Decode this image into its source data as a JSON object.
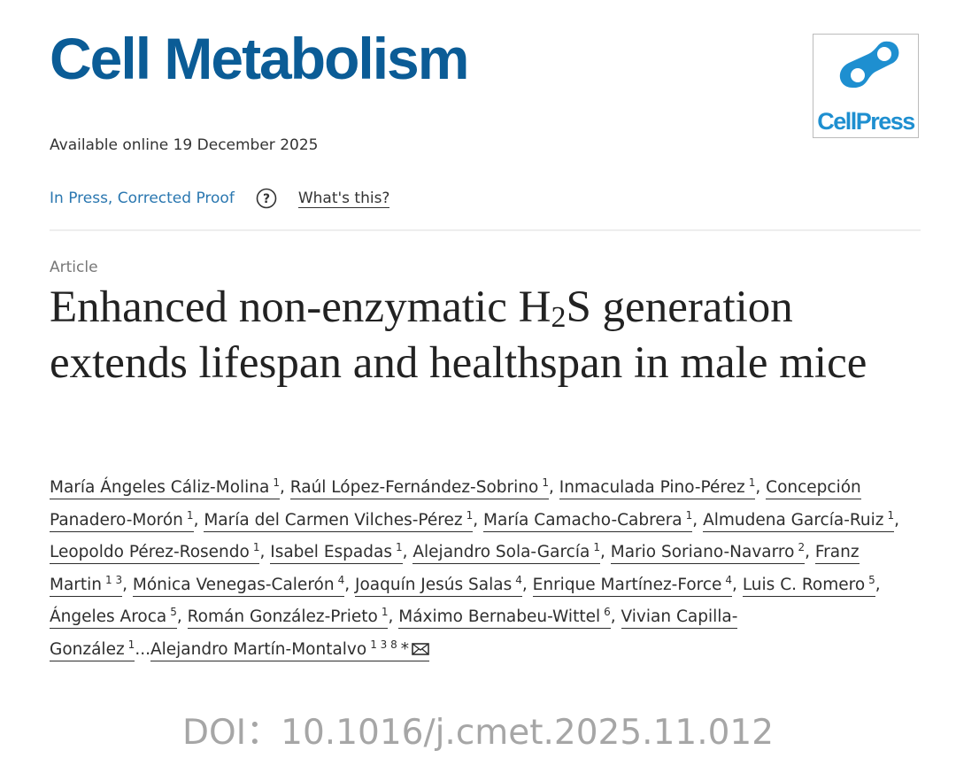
{
  "header": {
    "journal": "Cell Metabolism",
    "publisher": "CellPress",
    "available": "Available online 19 December 2025"
  },
  "status": {
    "label": "In Press, Corrected Proof",
    "help_icon": "?",
    "help_link": "What's this?"
  },
  "article": {
    "type": "Article",
    "title": [
      "Enhanced non-enzymatic H",
      "2",
      "S generation extends lifespan and healthspan in male mice"
    ],
    "authors": [
      {
        "name": "María Ángeles Cáliz-Molina",
        "sup": "1",
        "sep": ","
      },
      {
        "name": "Raúl López-Fernández-Sobrino",
        "sup": "1",
        "sep": ","
      },
      {
        "name": "Inmaculada Pino-Pérez",
        "sup": "1",
        "sep": ","
      },
      {
        "name": "Concepción Panadero-Morón",
        "sup": "1",
        "sep": ","
      },
      {
        "name": "María del Carmen Vilches-Pérez",
        "sup": "1",
        "sep": ","
      },
      {
        "name": "María Camacho-Cabrera",
        "sup": "1",
        "sep": ","
      },
      {
        "name": "Almudena García-Ruiz",
        "sup": "1",
        "sep": ","
      },
      {
        "name": "Leopoldo Pérez-Rosendo",
        "sup": "1",
        "sep": ","
      },
      {
        "name": "Isabel Espadas",
        "sup": "1",
        "sep": ","
      },
      {
        "name": "Alejandro Sola-García",
        "sup": "1",
        "sep": ","
      },
      {
        "name": "Mario Soriano-Navarro",
        "sup": "2",
        "sep": ","
      },
      {
        "name": "Franz Martin",
        "sup": "1 3",
        "sep": ","
      },
      {
        "name": "Mónica Venegas-Calerón",
        "sup": "4",
        "sep": ","
      },
      {
        "name": "Joaquín Jesús Salas",
        "sup": "4",
        "sep": ","
      },
      {
        "name": "Enrique Martínez-Force",
        "sup": "4",
        "sep": ","
      },
      {
        "name": "Luis C. Romero",
        "sup": "5",
        "sep": ","
      },
      {
        "name": "Ángeles Aroca",
        "sup": "5",
        "sep": ","
      },
      {
        "name": "Román González-Prieto",
        "sup": "1",
        "sep": ","
      },
      {
        "name": "Máximo Bernabeu-Wittel",
        "sup": "6",
        "sep": ","
      },
      {
        "name": "Vivian Capilla-González",
        "sup": "1",
        "sep": "..."
      },
      {
        "name": "Alejandro Martín-Montalvo",
        "sup": "1 3 8",
        "sep": "*"
      }
    ]
  },
  "doi": "DOI：10.1016/j.cmet.2025.11.012"
}
